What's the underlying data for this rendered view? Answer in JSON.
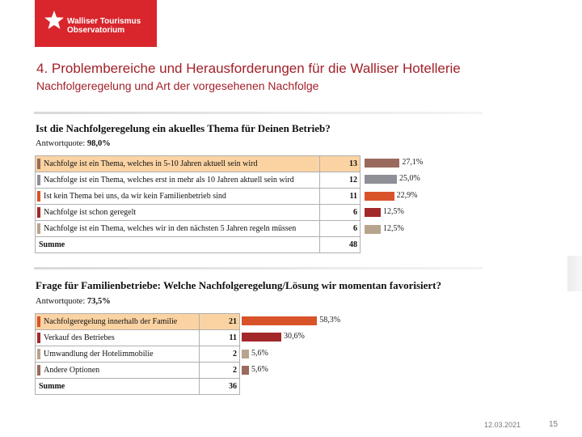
{
  "logo": {
    "line1": "Walliser Tourismus",
    "line2": "Observatorium",
    "color": "#d8262c"
  },
  "header": {
    "title": "4. Problembereiche und Herausforderungen für die Walliser Hotellerie",
    "subtitle": "Nachfolgeregelung und Art der vorgesehenen Nachfolge"
  },
  "section1": {
    "question": "Ist die Nachfolgeregelung ein akuelles Thema für Deinen Betrieb?",
    "quote_label": "Antwortquote: ",
    "quote_value": "98,0%",
    "rows": [
      {
        "label": "Nachfolge ist ein Thema, welches in 5-10 Jahren aktuell sein wird",
        "count": "13",
        "percent_label": "27,1%",
        "percent": 27.1,
        "color": "#9a6a5e",
        "highlight": true
      },
      {
        "label": "Nachfolge ist ein Thema, welches erst in mehr als 10 Jahren aktuell sein wird",
        "count": "12",
        "percent_label": "25,0%",
        "percent": 25.0,
        "color": "#8f8f98",
        "highlight": false
      },
      {
        "label": "Ist kein Thema bei uns, da wir kein Familienbetrieb sind",
        "count": "11",
        "percent_label": "22,9%",
        "percent": 22.9,
        "color": "#d9532a",
        "highlight": false
      },
      {
        "label": "Nachfolge ist schon geregelt",
        "count": "6",
        "percent_label": "12,5%",
        "percent": 12.5,
        "color": "#a3282a",
        "highlight": false
      },
      {
        "label": "Nachfolge ist ein Thema, welches wir in den nächsten 5 Jahren regeln müssen",
        "count": "6",
        "percent_label": "12,5%",
        "percent": 12.5,
        "color": "#b8a48c",
        "highlight": false
      }
    ],
    "sum_label": "Summe",
    "sum_value": "48"
  },
  "section2": {
    "question": "Frage für Familienbetriebe: Welche Nachfolgeregelung/Lösung wir momentan favorisiert?",
    "quote_label": "Antwortquote: ",
    "quote_value": "73,5%",
    "rows": [
      {
        "label": "Nachfolgeregelung innerhalb der Familie",
        "count": "21",
        "percent_label": "58,3%",
        "percent": 58.3,
        "color": "#d9532a",
        "highlight": true
      },
      {
        "label": "Verkauf des Betriebes",
        "count": "11",
        "percent_label": "30,6%",
        "percent": 30.6,
        "color": "#a3282a",
        "highlight": false
      },
      {
        "label": "Umwandlung der Hotelimmobilie",
        "count": "2",
        "percent_label": "5,6%",
        "percent": 5.6,
        "color": "#b8a48c",
        "highlight": false
      },
      {
        "label": "Andere Optionen",
        "count": "2",
        "percent_label": "5,6%",
        "percent": 5.6,
        "color": "#9a6a5e",
        "highlight": false
      }
    ],
    "sum_label": "Summe",
    "sum_value": "36"
  },
  "footer": {
    "date": "12.03.2021",
    "page": "15"
  }
}
